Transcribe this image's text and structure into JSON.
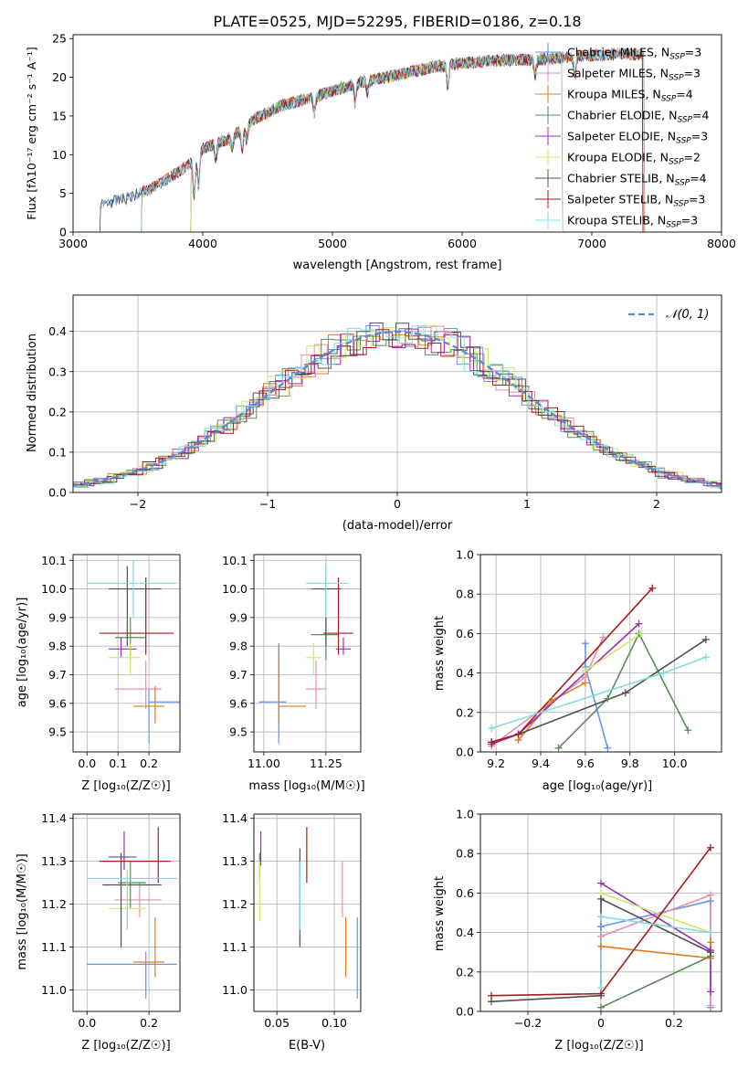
{
  "colors": {
    "Chabrier MILES": "#6495ed",
    "Salpeter MILES": "#e88fb0",
    "Kroupa MILES": "#e07b20",
    "Chabrier ELODIE": "#5a8a5a",
    "Salpeter ELODIE": "#9a2db8",
    "Kroupa ELODIE": "#c8ec6a",
    "Chabrier STELIB": "#505050",
    "Salpeter STELIB": "#a51c1c",
    "Kroupa STELIB": "#85dade",
    "gauss": "#5588dd"
  },
  "models": [
    {
      "key": "Chabrier MILES",
      "imf": "Chabrier",
      "lib": "MILES",
      "n": "3"
    },
    {
      "key": "Salpeter MILES",
      "imf": "Salpeter",
      "lib": "MILES",
      "n": "3"
    },
    {
      "key": "Kroupa MILES",
      "imf": "Kroupa",
      "lib": "MILES",
      "n": "4"
    },
    {
      "key": "Chabrier ELODIE",
      "imf": "Chabrier",
      "lib": "ELODIE",
      "n": "4"
    },
    {
      "key": "Salpeter ELODIE",
      "imf": "Salpeter",
      "lib": "ELODIE",
      "n": "3"
    },
    {
      "key": "Kroupa ELODIE",
      "imf": "Kroupa",
      "lib": "ELODIE",
      "n": "2"
    },
    {
      "key": "Chabrier STELIB",
      "imf": "Chabrier",
      "lib": "STELIB",
      "n": "4"
    },
    {
      "key": "Salpeter STELIB",
      "imf": "Salpeter",
      "lib": "STELIB",
      "n": "3"
    },
    {
      "key": "Kroupa STELIB",
      "imf": "Kroupa",
      "lib": "STELIB",
      "n": "3"
    }
  ],
  "chart_data": [
    {
      "type": "line",
      "title": "PLATE=0525, MJD=52295, FIBERID=0186, z=0.18",
      "xlabel": "wavelength [Angstrom, rest frame]",
      "ylabel": "Flux [fλ10⁻¹⁷ erg cm⁻² s⁻¹ A⁻¹]",
      "xlim": [
        3000,
        8000
      ],
      "ylim": [
        0,
        25.5
      ],
      "xticks": [
        3000,
        4000,
        5000,
        6000,
        7000,
        8000
      ],
      "yticks": [
        0,
        5,
        10,
        15,
        20,
        25
      ],
      "legend": "top-right",
      "model_ranges": [
        [
          3200,
          7410
        ],
        [
          3520,
          7410
        ],
        [
          3520,
          7410
        ],
        [
          3900,
          6780
        ],
        [
          3900,
          6780
        ],
        [
          3900,
          6780
        ],
        [
          3200,
          7400
        ],
        [
          3520,
          7400
        ],
        [
          3520,
          7410
        ]
      ],
      "continuum": [
        [
          3200,
          3.5
        ],
        [
          3400,
          4.3
        ],
        [
          3600,
          5.6
        ],
        [
          3800,
          7.6
        ],
        [
          3950,
          9.5
        ],
        [
          4000,
          10.8
        ],
        [
          4200,
          12.0
        ],
        [
          4400,
          14.6
        ],
        [
          4600,
          16.3
        ],
        [
          4800,
          17.2
        ],
        [
          5000,
          18.2
        ],
        [
          5200,
          19.3
        ],
        [
          5500,
          20.3
        ],
        [
          5800,
          21.4
        ],
        [
          6000,
          21.8
        ],
        [
          6300,
          22.2
        ],
        [
          6600,
          22.3
        ],
        [
          6800,
          22.6
        ],
        [
          7000,
          22.8
        ],
        [
          7200,
          23.0
        ],
        [
          7400,
          23.0
        ]
      ]
    },
    {
      "type": "bar",
      "xlabel": "(data-model)/error",
      "ylabel": "Normed distribution",
      "xlim": [
        -2.5,
        2.5
      ],
      "ylim": [
        0,
        0.49
      ],
      "xticks": [
        -2,
        -1,
        0,
        1,
        2
      ],
      "yticks": [
        0.0,
        0.1,
        0.2,
        0.3,
        0.4
      ],
      "grid": true,
      "legend": "top-right",
      "gauss_label": "𝒩(0, 1)",
      "bin_width": 0.1
    },
    {
      "type": "scatter",
      "xlabel": "Z [log₁₀(Z/Z☉)]",
      "ylabel": "age  [log₁₀(age/yr)]",
      "xlim": [
        -0.045,
        0.3
      ],
      "ylim": [
        9.43,
        10.12
      ],
      "xticks": [
        0.0,
        0.1,
        0.2
      ],
      "yticks": [
        9.5,
        9.6,
        9.7,
        9.8,
        9.9,
        10.0,
        10.1
      ],
      "grid": true,
      "points": [
        {
          "m": "Chabrier MILES",
          "x": 0.2,
          "y": 9.605,
          "xerr": [
            0.2,
            0.3
          ],
          "yerr": [
            9.46,
            9.65
          ]
        },
        {
          "m": "Salpeter MILES",
          "x": 0.19,
          "y": 9.65,
          "xerr": [
            0.09,
            0.24
          ],
          "yerr": [
            9.58,
            9.75
          ]
        },
        {
          "m": "Kroupa MILES",
          "x": 0.22,
          "y": 9.59,
          "xerr": [
            0.15,
            0.25
          ],
          "yerr": [
            9.53,
            9.66
          ]
        },
        {
          "m": "Chabrier ELODIE",
          "x": 0.14,
          "y": 9.83,
          "xerr": [
            0.09,
            0.19
          ],
          "yerr": [
            9.75,
            9.9
          ]
        },
        {
          "m": "Salpeter ELODIE",
          "x": 0.11,
          "y": 9.79,
          "xerr": [
            0.07,
            0.16
          ],
          "yerr": [
            9.76,
            9.83
          ]
        },
        {
          "m": "Kroupa ELODIE",
          "x": 0.14,
          "y": 9.76,
          "xerr": [
            0.07,
            0.17
          ],
          "yerr": [
            9.7,
            9.81
          ]
        },
        {
          "m": "Chabrier STELIB",
          "x": 0.13,
          "y": 10.0,
          "xerr": [
            0.07,
            0.24
          ],
          "yerr": [
            9.8,
            10.08
          ]
        },
        {
          "m": "Salpeter STELIB",
          "x": 0.19,
          "y": 9.845,
          "xerr": [
            0.04,
            0.28
          ],
          "yerr": [
            9.77,
            10.04
          ]
        },
        {
          "m": "Kroupa STELIB",
          "x": 0.15,
          "y": 10.02,
          "xerr": [
            0.0,
            0.29
          ],
          "yerr": [
            9.9,
            10.1
          ]
        }
      ]
    },
    {
      "type": "scatter",
      "xlabel": "mass [log₁₀(M/M☉)]",
      "xlim": [
        10.96,
        11.39
      ],
      "ylim": [
        9.43,
        10.12
      ],
      "xticks": [
        11.0,
        11.25
      ],
      "yticks": [
        9.5,
        9.6,
        9.7,
        9.8,
        9.9,
        10.0,
        10.1
      ],
      "grid": true,
      "points": [
        {
          "m": "Chabrier MILES",
          "x": 11.06,
          "y": 9.605,
          "xerr": [
            10.98,
            11.09
          ],
          "yerr": [
            9.46,
            9.81
          ]
        },
        {
          "m": "Salpeter MILES",
          "x": 11.21,
          "y": 9.65,
          "xerr": [
            11.17,
            11.25
          ],
          "yerr": [
            9.58,
            9.75
          ]
        },
        {
          "m": "Kroupa MILES",
          "x": 11.06,
          "y": 9.59,
          "xerr": [
            11.06,
            11.17
          ],
          "yerr": [
            9.53,
            9.8
          ]
        },
        {
          "m": "Chabrier ELODIE",
          "x": 11.25,
          "y": 9.84,
          "xerr": [
            11.19,
            11.3
          ],
          "yerr": [
            9.75,
            9.9
          ]
        },
        {
          "m": "Salpeter ELODIE",
          "x": 11.32,
          "y": 9.79,
          "xerr": [
            11.29,
            11.35
          ],
          "yerr": [
            9.77,
            9.83
          ]
        },
        {
          "m": "Kroupa ELODIE",
          "x": 11.2,
          "y": 9.76,
          "xerr": [
            11.17,
            11.23
          ],
          "yerr": [
            9.7,
            9.81
          ]
        },
        {
          "m": "Chabrier STELIB",
          "x": 11.25,
          "y": 10.0,
          "xerr": [
            11.19,
            11.31
          ],
          "yerr": [
            9.8,
            10.08
          ]
        },
        {
          "m": "Salpeter STELIB",
          "x": 11.3,
          "y": 9.845,
          "xerr": [
            11.24,
            11.36
          ],
          "yerr": [
            9.77,
            10.04
          ]
        },
        {
          "m": "Kroupa STELIB",
          "x": 11.25,
          "y": 10.02,
          "xerr": [
            11.17,
            11.34
          ],
          "yerr": [
            9.9,
            10.1
          ]
        }
      ]
    },
    {
      "type": "line",
      "xlabel": "age  [log₁₀(age/yr)]",
      "ylabel": "mass weight",
      "xlim": [
        9.13,
        10.21
      ],
      "ylim": [
        0,
        1.0
      ],
      "xticks": [
        9.2,
        9.4,
        9.6,
        9.8,
        10.0
      ],
      "yticks": [
        0.0,
        0.2,
        0.4,
        0.6,
        0.8,
        1.0
      ],
      "grid": true,
      "series": [
        {
          "m": "Chabrier MILES",
          "x": [
            9.6,
            9.6,
            9.7
          ],
          "y": [
            0.55,
            0.43,
            0.02
          ]
        },
        {
          "m": "Salpeter MILES",
          "x": [
            9.18,
            9.6,
            9.68
          ],
          "y": [
            0.03,
            0.38,
            0.58
          ]
        },
        {
          "m": "Kroupa MILES",
          "x": [
            9.3,
            9.45,
            9.6
          ],
          "y": [
            0.06,
            0.26,
            0.35
          ]
        },
        {
          "m": "Chabrier ELODIE",
          "x": [
            9.48,
            9.7,
            9.84,
            10.06
          ],
          "y": [
            0.02,
            0.27,
            0.6,
            0.11
          ]
        },
        {
          "m": "Salpeter ELODIE",
          "x": [
            9.18,
            9.3,
            9.84
          ],
          "y": [
            0.04,
            0.09,
            0.65
          ]
        },
        {
          "m": "Kroupa ELODIE",
          "x": [
            9.6,
            9.85
          ],
          "y": [
            0.41,
            0.6
          ]
        },
        {
          "m": "Chabrier STELIB",
          "x": [
            9.18,
            9.3,
            9.78,
            10.14
          ],
          "y": [
            0.05,
            0.09,
            0.3,
            0.57
          ]
        },
        {
          "m": "Salpeter STELIB",
          "x": [
            9.18,
            9.3,
            9.9
          ],
          "y": [
            0.05,
            0.09,
            0.83
          ]
        },
        {
          "m": "Kroupa STELIB",
          "x": [
            9.18,
            9.95,
            10.14
          ],
          "y": [
            0.12,
            0.4,
            0.48
          ]
        }
      ]
    },
    {
      "type": "scatter",
      "xlabel": "Z [log₁₀(Z/Z☉)]",
      "ylabel": "mass [log₁₀(M/M☉)]",
      "xlim": [
        -0.045,
        0.3
      ],
      "ylim": [
        10.95,
        11.41
      ],
      "xticks": [
        0.0,
        0.2
      ],
      "yticks": [
        11.0,
        11.1,
        11.2,
        11.3,
        11.4
      ],
      "grid": true,
      "points": [
        {
          "m": "Chabrier MILES",
          "x": 0.19,
          "y": 11.06,
          "xerr": [
            0.0,
            0.29
          ],
          "yerr": [
            10.98,
            11.09
          ]
        },
        {
          "m": "Salpeter MILES",
          "x": 0.17,
          "y": 11.21,
          "xerr": [
            0.09,
            0.24
          ],
          "yerr": [
            11.17,
            11.25
          ]
        },
        {
          "m": "Kroupa MILES",
          "x": 0.22,
          "y": 11.065,
          "xerr": [
            0.15,
            0.25
          ],
          "yerr": [
            11.03,
            11.17
          ]
        },
        {
          "m": "Chabrier ELODIE",
          "x": 0.14,
          "y": 11.25,
          "xerr": [
            0.1,
            0.19
          ],
          "yerr": [
            11.19,
            11.3
          ]
        },
        {
          "m": "Salpeter ELODIE",
          "x": 0.12,
          "y": 11.31,
          "xerr": [
            0.07,
            0.16
          ],
          "yerr": [
            11.28,
            11.37
          ]
        },
        {
          "m": "Kroupa ELODIE",
          "x": 0.13,
          "y": 11.19,
          "xerr": [
            0.07,
            0.19
          ],
          "yerr": [
            11.16,
            11.23
          ]
        },
        {
          "m": "Chabrier STELIB",
          "x": 0.11,
          "y": 11.245,
          "xerr": [
            0.05,
            0.24
          ],
          "yerr": [
            11.1,
            11.32
          ]
        },
        {
          "m": "Salpeter STELIB",
          "x": 0.23,
          "y": 11.3,
          "xerr": [
            0.04,
            0.27
          ],
          "yerr": [
            11.25,
            11.38
          ]
        },
        {
          "m": "Kroupa STELIB",
          "x": 0.13,
          "y": 11.26,
          "xerr": [
            0.0,
            0.29
          ],
          "yerr": [
            11.14,
            11.28
          ]
        }
      ]
    },
    {
      "type": "scatter",
      "xlabel": "E(B-V)",
      "xlim": [
        0.03,
        0.123
      ],
      "ylim": [
        10.95,
        11.41
      ],
      "xticks": [
        0.05,
        0.1
      ],
      "yticks": [
        11.0,
        11.1,
        11.2,
        11.3,
        11.4
      ],
      "grid": true,
      "points": [
        {
          "m": "Chabrier MILES",
          "x": 0.12,
          "y": 11.06,
          "yerr": [
            10.98,
            11.17
          ]
        },
        {
          "m": "Salpeter MILES",
          "x": 0.107,
          "y": 11.2,
          "yerr": [
            11.17,
            11.3
          ]
        },
        {
          "m": "Kroupa MILES",
          "x": 0.11,
          "y": 11.1,
          "yerr": [
            11.03,
            11.17
          ]
        },
        {
          "m": "Chabrier ELODIE",
          "x": 0.035,
          "y": 11.28,
          "yerr": [
            11.26,
            11.32
          ]
        },
        {
          "m": "Salpeter ELODIE",
          "x": 0.036,
          "y": 11.32,
          "yerr": [
            11.29,
            11.37
          ]
        },
        {
          "m": "Kroupa ELODIE",
          "x": 0.035,
          "y": 11.22,
          "yerr": [
            11.16,
            11.3
          ]
        },
        {
          "m": "Chabrier STELIB",
          "x": 0.07,
          "y": 11.25,
          "yerr": [
            11.1,
            11.33
          ]
        },
        {
          "m": "Salpeter STELIB",
          "x": 0.076,
          "y": 11.32,
          "yerr": [
            11.25,
            11.38
          ]
        },
        {
          "m": "Kroupa STELIB",
          "x": 0.07,
          "y": 11.22,
          "yerr": [
            11.14,
            11.3
          ]
        }
      ]
    },
    {
      "type": "line",
      "xlabel": "Z [log₁₀(Z/Z☉)]",
      "ylabel": "mass weight",
      "xlim": [
        -0.33,
        0.33
      ],
      "ylim": [
        0,
        1.0
      ],
      "xticks": [
        -0.2,
        0.0,
        0.2
      ],
      "yticks": [
        0.0,
        0.2,
        0.4,
        0.6,
        0.8,
        1.0
      ],
      "grid": true,
      "series": [
        {
          "m": "Chabrier MILES",
          "x": [
            0.0,
            0.0,
            0.3,
            0.3
          ],
          "y": [
            0.43,
            0.43,
            0.56,
            0.02
          ]
        },
        {
          "m": "Salpeter MILES",
          "x": [
            0.0,
            0.3,
            0.3
          ],
          "y": [
            0.38,
            0.59,
            0.03
          ]
        },
        {
          "m": "Kroupa MILES",
          "x": [
            0.0,
            0.3,
            0.3
          ],
          "y": [
            0.33,
            0.27,
            0.35
          ]
        },
        {
          "m": "Chabrier ELODIE",
          "x": [
            0.0,
            0.3
          ],
          "y": [
            0.02,
            0.28
          ]
        },
        {
          "m": "Salpeter ELODIE",
          "x": [
            0.0,
            0.3,
            0.3
          ],
          "y": [
            0.65,
            0.31,
            0.1
          ]
        },
        {
          "m": "Kroupa ELODIE",
          "x": [
            0.0,
            0.3
          ],
          "y": [
            0.6,
            0.4
          ]
        },
        {
          "m": "Chabrier STELIB",
          "x": [
            -0.3,
            0.0,
            0.0,
            0.3
          ],
          "y": [
            0.05,
            0.08,
            0.57,
            0.3
          ]
        },
        {
          "m": "Salpeter STELIB",
          "x": [
            -0.3,
            0.0,
            0.3
          ],
          "y": [
            0.08,
            0.09,
            0.83
          ]
        },
        {
          "m": "Kroupa STELIB",
          "x": [
            0.0,
            0.0,
            0.3
          ],
          "y": [
            0.12,
            0.48,
            0.4
          ]
        }
      ]
    }
  ]
}
